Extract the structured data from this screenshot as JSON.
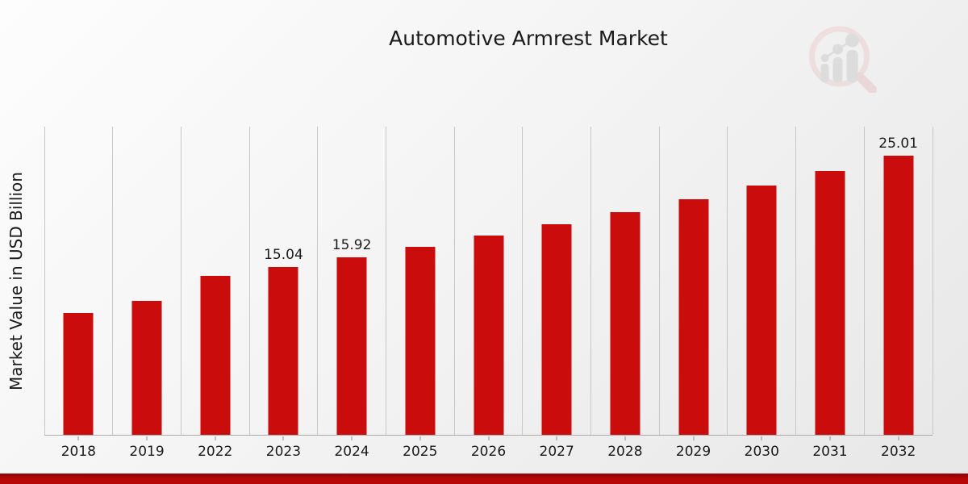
{
  "header": {
    "logo_icon": "magnifier-growth-chart-watermark-icon"
  },
  "footer": {
    "stripe_dark": "#920707",
    "stripe_main": "#b80707"
  },
  "colors": {
    "bar": "#cb0c0c",
    "gridline": "#c7c7c7",
    "axis_line": "#a9a9a9",
    "text": "#1a1a1a",
    "logo_ring": "#ecd0d0",
    "logo_glyph": "#cdcdcd"
  },
  "chart_data": {
    "type": "bar",
    "title": "Automotive Armrest Market",
    "xlabel": "",
    "ylabel": "Market Value in USD Billion",
    "categories": [
      "2018",
      "2019",
      "2022",
      "2023",
      "2024",
      "2025",
      "2026",
      "2027",
      "2028",
      "2029",
      "2030",
      "2031",
      "2032"
    ],
    "values": [
      10.92,
      12.0,
      14.25,
      15.04,
      15.92,
      16.84,
      17.82,
      18.85,
      19.95,
      21.1,
      22.33,
      23.62,
      25.01
    ],
    "data_labels": {
      "2023": "15.04",
      "2024": "15.92",
      "2032": "25.01"
    },
    "bar_color": "#cb0c0c",
    "ylim": [
      0,
      27.6
    ],
    "grid": "vertical-only",
    "legend": "none",
    "y_tick_labels": "none"
  }
}
